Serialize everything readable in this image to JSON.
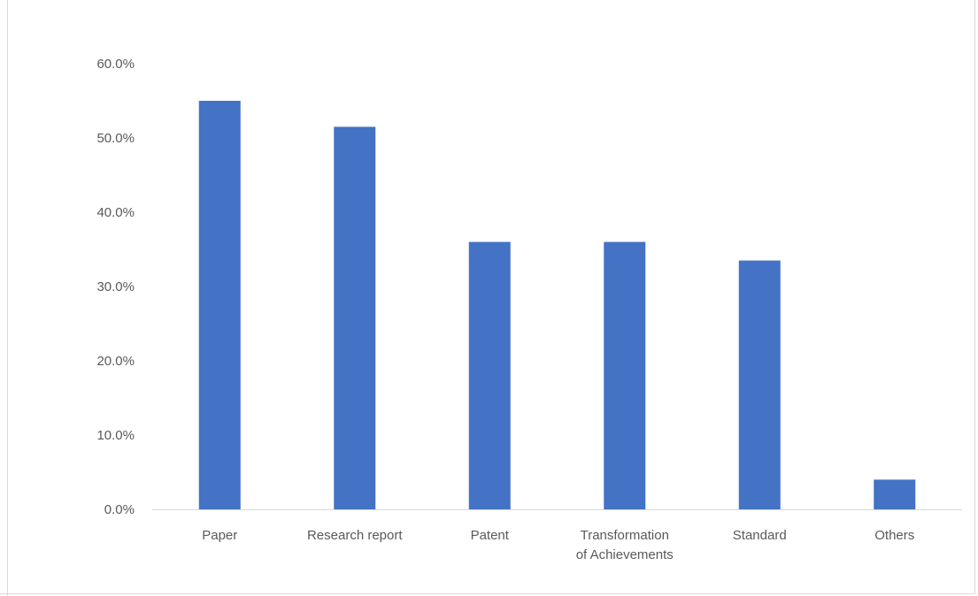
{
  "chart_data": {
    "type": "bar",
    "title": "",
    "xlabel": "",
    "ylabel": "",
    "categories": [
      [
        "Paper"
      ],
      [
        "Research report"
      ],
      [
        "Patent"
      ],
      [
        "Transformation",
        "of Achievements"
      ],
      [
        "Standard"
      ],
      [
        "Others"
      ]
    ],
    "values": [
      55.0,
      51.5,
      36.0,
      36.0,
      33.5,
      4.0
    ],
    "ylim": [
      0,
      60
    ],
    "yticks": [
      0,
      10,
      20,
      30,
      40,
      50,
      60
    ],
    "ytick_labels": [
      "0.0%",
      "10.0%",
      "20.0%",
      "30.0%",
      "40.0%",
      "50.0%",
      "60.0%"
    ],
    "grid": false,
    "legend": "none",
    "colors": {
      "bar": "#4472c4",
      "axis": "#d9d9d9",
      "text": "#595959"
    }
  }
}
